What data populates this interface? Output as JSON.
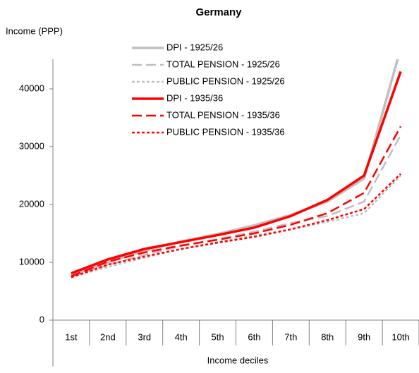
{
  "chart_data": {
    "type": "line",
    "title": "Germany",
    "y_label": "Income (PPP)",
    "x_label": "Income deciles",
    "categories": [
      "1st",
      "2nd",
      "3rd",
      "4th",
      "5th",
      "6th",
      "7th",
      "8th",
      "9th",
      "10th"
    ],
    "ylim": [
      0,
      45000
    ],
    "yticks": [
      0,
      10000,
      20000,
      30000,
      40000
    ],
    "series": [
      {
        "name": "DPI  -  1925/26",
        "color": "#bfbfbf",
        "style": "solid",
        "values": [
          7800,
          10000,
          12000,
          13600,
          14900,
          16400,
          18200,
          20500,
          24500,
          47000
        ]
      },
      {
        "name": "TOTAL PENSION  -  1925/26",
        "color": "#bfbfbf",
        "style": "dashed",
        "values": [
          7500,
          9500,
          11300,
          12800,
          14000,
          15300,
          16800,
          18000,
          20500,
          32000
        ]
      },
      {
        "name": "PUBLIC PENSION  -  1925/26",
        "color": "#bfbfbf",
        "style": "dotted",
        "values": [
          7400,
          9200,
          10800,
          12300,
          13500,
          14600,
          15700,
          17000,
          18500,
          25000
        ]
      },
      {
        "name": "DPI  -  1935/36",
        "color": "#ff0000",
        "style": "solid",
        "values": [
          8100,
          10500,
          12300,
          13500,
          14700,
          16000,
          18000,
          20800,
          25000,
          43000
        ]
      },
      {
        "name": "TOTAL PENSION  -  1935/36",
        "color": "#ff0000",
        "style": "dashed",
        "values": [
          7600,
          10100,
          11700,
          12900,
          13900,
          15000,
          16500,
          18500,
          22000,
          33500
        ]
      },
      {
        "name": "PUBLIC PENSION  -  1935/36",
        "color": "#ff0000",
        "style": "dotted",
        "values": [
          7400,
          9600,
          11000,
          12300,
          13400,
          14400,
          15700,
          17300,
          19200,
          25300
        ]
      }
    ]
  }
}
